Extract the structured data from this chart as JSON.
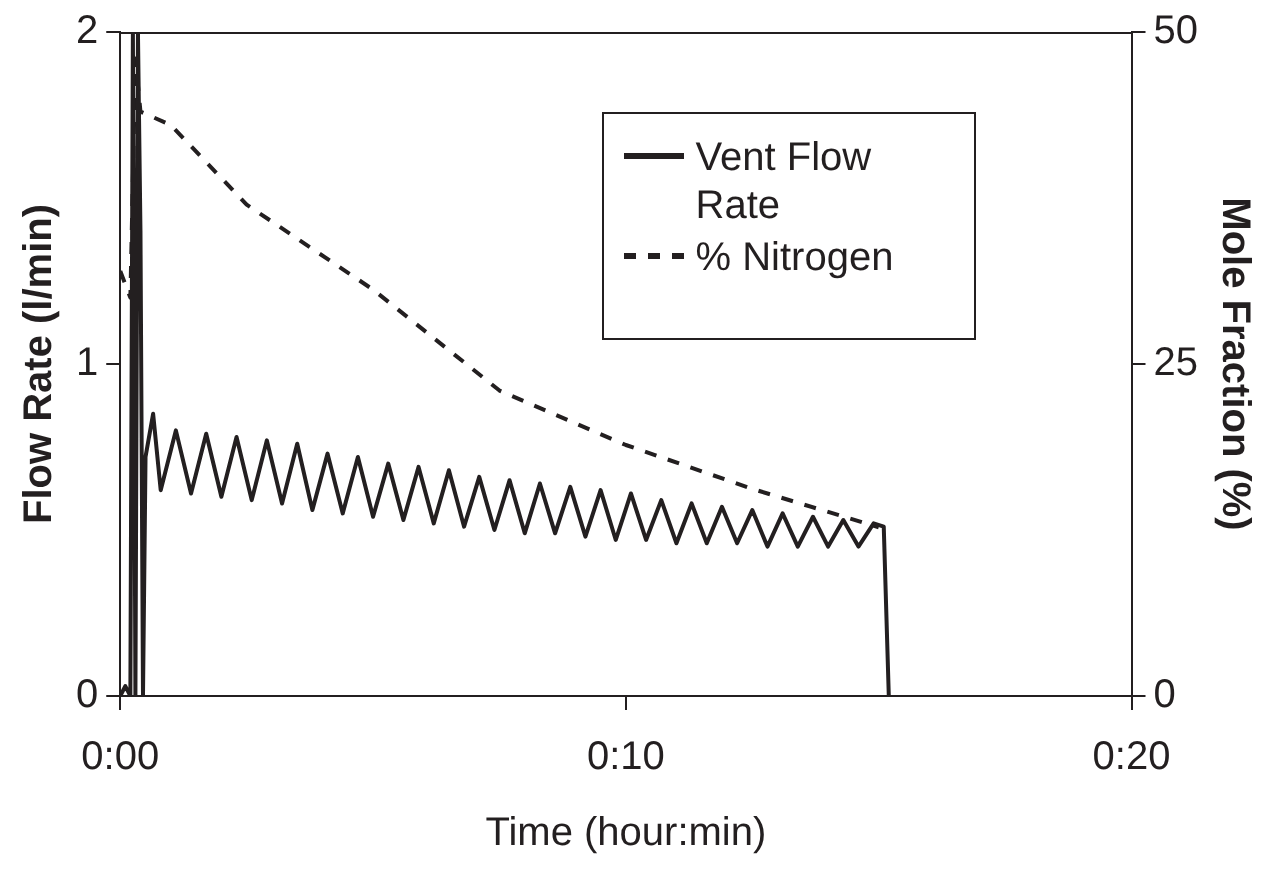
{
  "chart_data": {
    "type": "line",
    "xlabel": "Time (hour:min)",
    "ylabel": "Flow Rate (l/min)",
    "y2label": "Mole Fraction (%)",
    "xlim": [
      0,
      20
    ],
    "xticks": [
      {
        "value": 0,
        "label": "0:00"
      },
      {
        "value": 10,
        "label": "0:10"
      },
      {
        "value": 20,
        "label": "0:20"
      }
    ],
    "ylim": [
      0,
      2
    ],
    "yticks": [
      0,
      1,
      2
    ],
    "y2lim": [
      0,
      50
    ],
    "y2ticks": [
      0,
      25,
      50
    ],
    "grid": false,
    "legend": "top right",
    "marker": "none",
    "series": [
      {
        "name": "Vent Flow Rate",
        "color": "#231f20",
        "line_style": "solid",
        "x": [
          0,
          0.1,
          0.2,
          0.25,
          0.3,
          0.35,
          0.4,
          0.45,
          0.5,
          0.65,
          0.8,
          1.1,
          1.4,
          1.7,
          2.0,
          2.3,
          2.6,
          2.9,
          3.2,
          3.5,
          3.8,
          4.1,
          4.4,
          4.7,
          5.0,
          5.3,
          5.6,
          5.9,
          6.2,
          6.5,
          6.8,
          7.1,
          7.4,
          7.7,
          8.0,
          8.3,
          8.6,
          8.9,
          9.2,
          9.5,
          9.8,
          10.1,
          10.4,
          10.7,
          11.0,
          11.3,
          11.6,
          11.9,
          12.2,
          12.5,
          12.8,
          13.1,
          13.4,
          13.7,
          14.0,
          14.3,
          14.6,
          14.9,
          15.1,
          15.2
        ],
        "values": [
          0,
          0.03,
          0,
          2,
          0,
          2,
          1.4,
          0,
          0.72,
          0.85,
          0.62,
          0.8,
          0.61,
          0.79,
          0.6,
          0.78,
          0.59,
          0.77,
          0.58,
          0.76,
          0.56,
          0.73,
          0.55,
          0.72,
          0.54,
          0.7,
          0.53,
          0.69,
          0.52,
          0.68,
          0.51,
          0.66,
          0.5,
          0.65,
          0.49,
          0.64,
          0.49,
          0.63,
          0.48,
          0.62,
          0.47,
          0.61,
          0.47,
          0.59,
          0.46,
          0.58,
          0.46,
          0.57,
          0.46,
          0.56,
          0.45,
          0.55,
          0.45,
          0.54,
          0.45,
          0.53,
          0.45,
          0.52,
          0.51,
          0
        ]
      },
      {
        "name": "% Nitrogen",
        "color": "#231f20",
        "line_style": "dashed",
        "axis": "y2",
        "x": [
          0,
          0.2,
          0.3,
          0.4,
          1,
          2.5,
          5,
          7.5,
          10,
          12.5,
          15
        ],
        "values": [
          32,
          30,
          48,
          44,
          43,
          37,
          30.6,
          23,
          18.9,
          15.6,
          12.7
        ]
      }
    ]
  }
}
